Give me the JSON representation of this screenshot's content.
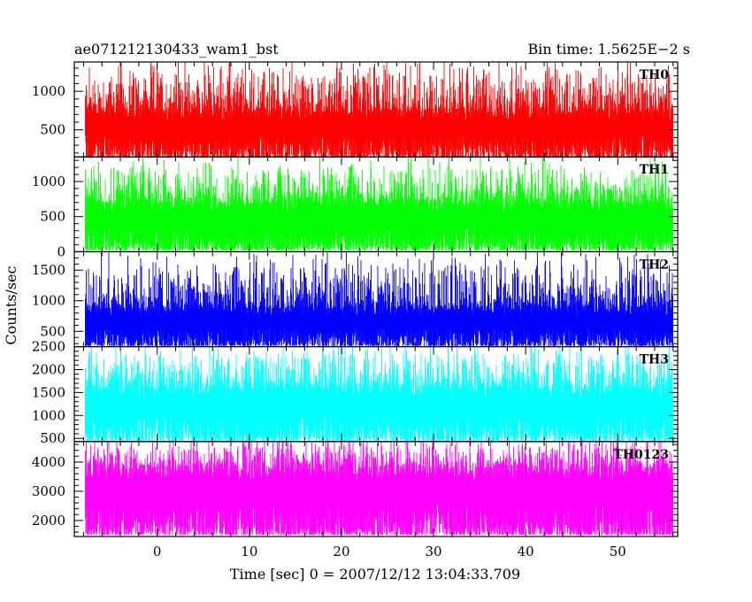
{
  "chart_data": {
    "type": "line",
    "title_left": "ae071212130433_wam1_bst",
    "title_right": "Bin time: 1.5625E−2 s",
    "xlabel": "Time [sec] 0 = 2007/12/12 13:04:33.709",
    "ylabel": "Counts/sec",
    "xlim": [
      -9,
      56.5
    ],
    "x_ticks": [
      0,
      10,
      20,
      30,
      40,
      50
    ],
    "x_range_data": [
      -7.8,
      56
    ],
    "bin_time": 0.015625,
    "panels": [
      {
        "name": "TH0",
        "color": "#ff0000",
        "ylim": [
          150,
          1380
        ],
        "y_ticks": [
          500,
          1000
        ],
        "mean": 620,
        "base": 140,
        "peak": 1400
      },
      {
        "name": "TH1",
        "color": "#00ff00",
        "ylim": [
          0,
          1350
        ],
        "y_ticks": [
          0,
          500,
          1000
        ],
        "mean": 560,
        "base": 20,
        "peak": 1300
      },
      {
        "name": "TH2",
        "color": "#0000ff",
        "ylim": [
          250,
          1800
        ],
        "y_ticks": [
          500,
          1000,
          1500
        ],
        "mean": 750,
        "base": 260,
        "peak": 1780
      },
      {
        "name": "TH3",
        "color": "#00ffff",
        "ylim": [
          430,
          2500
        ],
        "y_ticks": [
          500,
          1000,
          1500,
          2000,
          2500
        ],
        "mean": 1370,
        "base": 440,
        "peak": 2500
      },
      {
        "name": "TH0123",
        "color": "#ff00ff",
        "ylim": [
          1450,
          4700
        ],
        "y_ticks": [
          2000,
          3000,
          4000
        ],
        "mean": 3300,
        "base": 1500,
        "peak": 4700
      }
    ]
  }
}
